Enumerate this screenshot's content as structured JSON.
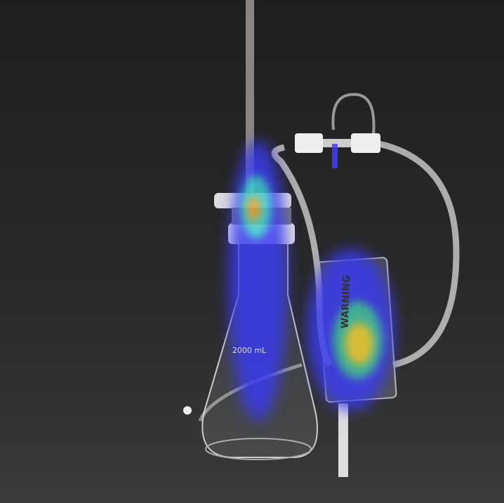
{
  "image": {
    "labels": [
      "WARNING",
      "2000 mL"
    ]
  }
}
